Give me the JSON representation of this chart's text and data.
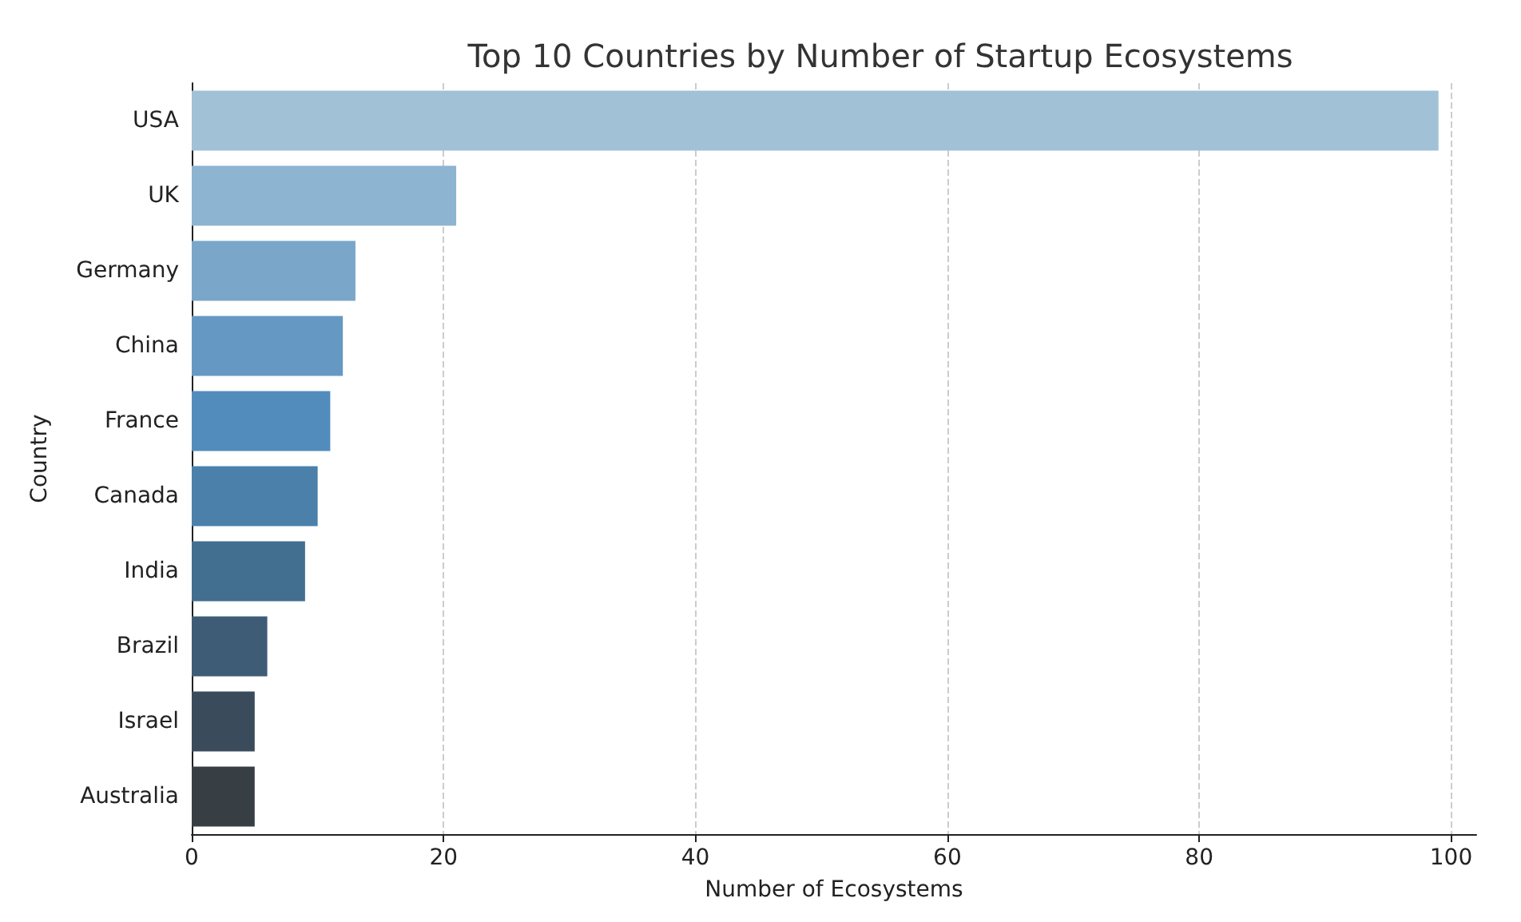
{
  "chart_data": {
    "type": "bar",
    "orientation": "horizontal",
    "title": "Top 10 Countries by Number of Startup Ecosystems",
    "xlabel": "Number of Ecosystems",
    "ylabel": "Country",
    "categories": [
      "USA",
      "UK",
      "Germany",
      "China",
      "France",
      "Canada",
      "India",
      "Brazil",
      "Israel",
      "Australia"
    ],
    "values": [
      99,
      21,
      13,
      12,
      11,
      10,
      9,
      6,
      5,
      5
    ],
    "colors": [
      "#a0c1d6",
      "#8db4d0",
      "#79a6c9",
      "#6599c3",
      "#528cbd",
      "#4a80aa",
      "#426e8f",
      "#3e5c75",
      "#3a4b5c",
      "#373f45"
    ],
    "xlim": [
      0,
      102
    ],
    "xticks": [
      0,
      20,
      40,
      60,
      80,
      100
    ],
    "grid": "x"
  }
}
